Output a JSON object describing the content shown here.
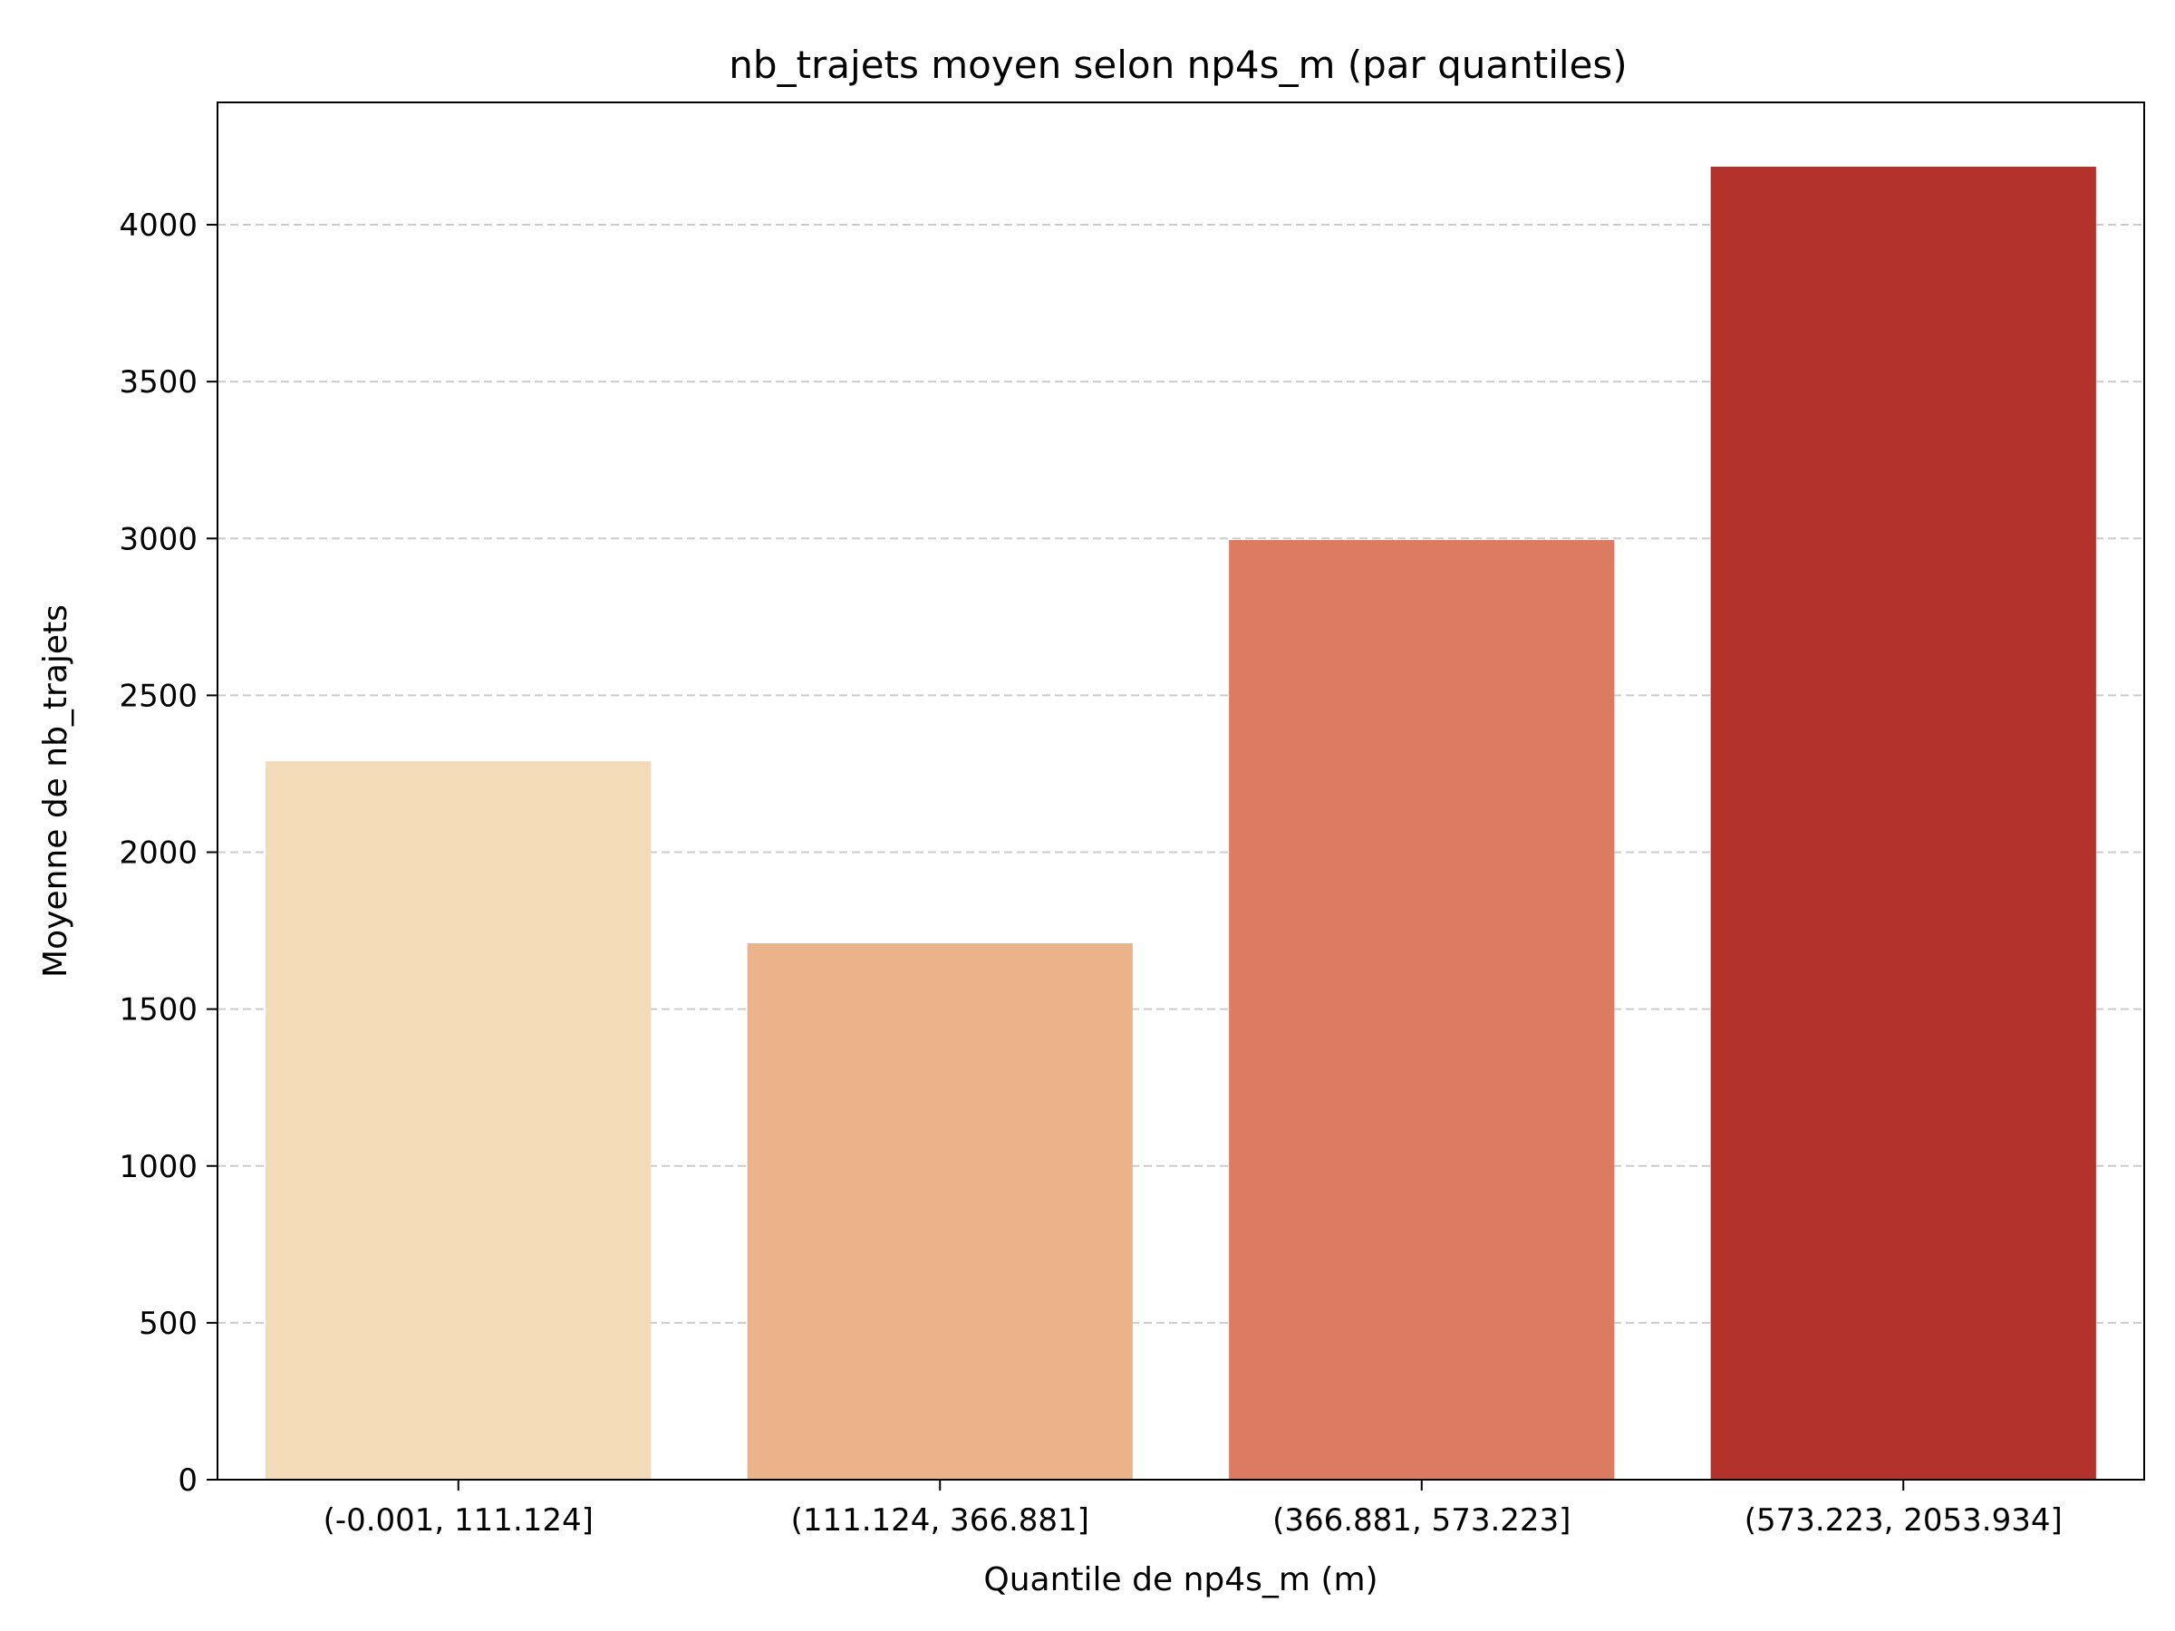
{
  "chart_data": {
    "type": "bar",
    "title": "nb_trajets moyen selon np4s_m (par quantiles)",
    "xlabel": "Quantile de np4s_m (m)",
    "ylabel": "Moyenne de nb_trajets",
    "categories": [
      "(-0.001, 111.124]",
      "(111.124, 366.881]",
      "(366.881, 573.223]",
      "(573.223, 2053.934]"
    ],
    "values": [
      2290,
      1710,
      2995,
      4185
    ],
    "colors": [
      "#f4dbb8",
      "#ecb28a",
      "#dd7a62",
      "#b2312b"
    ],
    "ylim": [
      0,
      4390
    ],
    "yticks": [
      0,
      500,
      1000,
      1500,
      2000,
      2500,
      3000,
      3500,
      4000
    ],
    "grid": "y-dashed",
    "legend": "none"
  }
}
